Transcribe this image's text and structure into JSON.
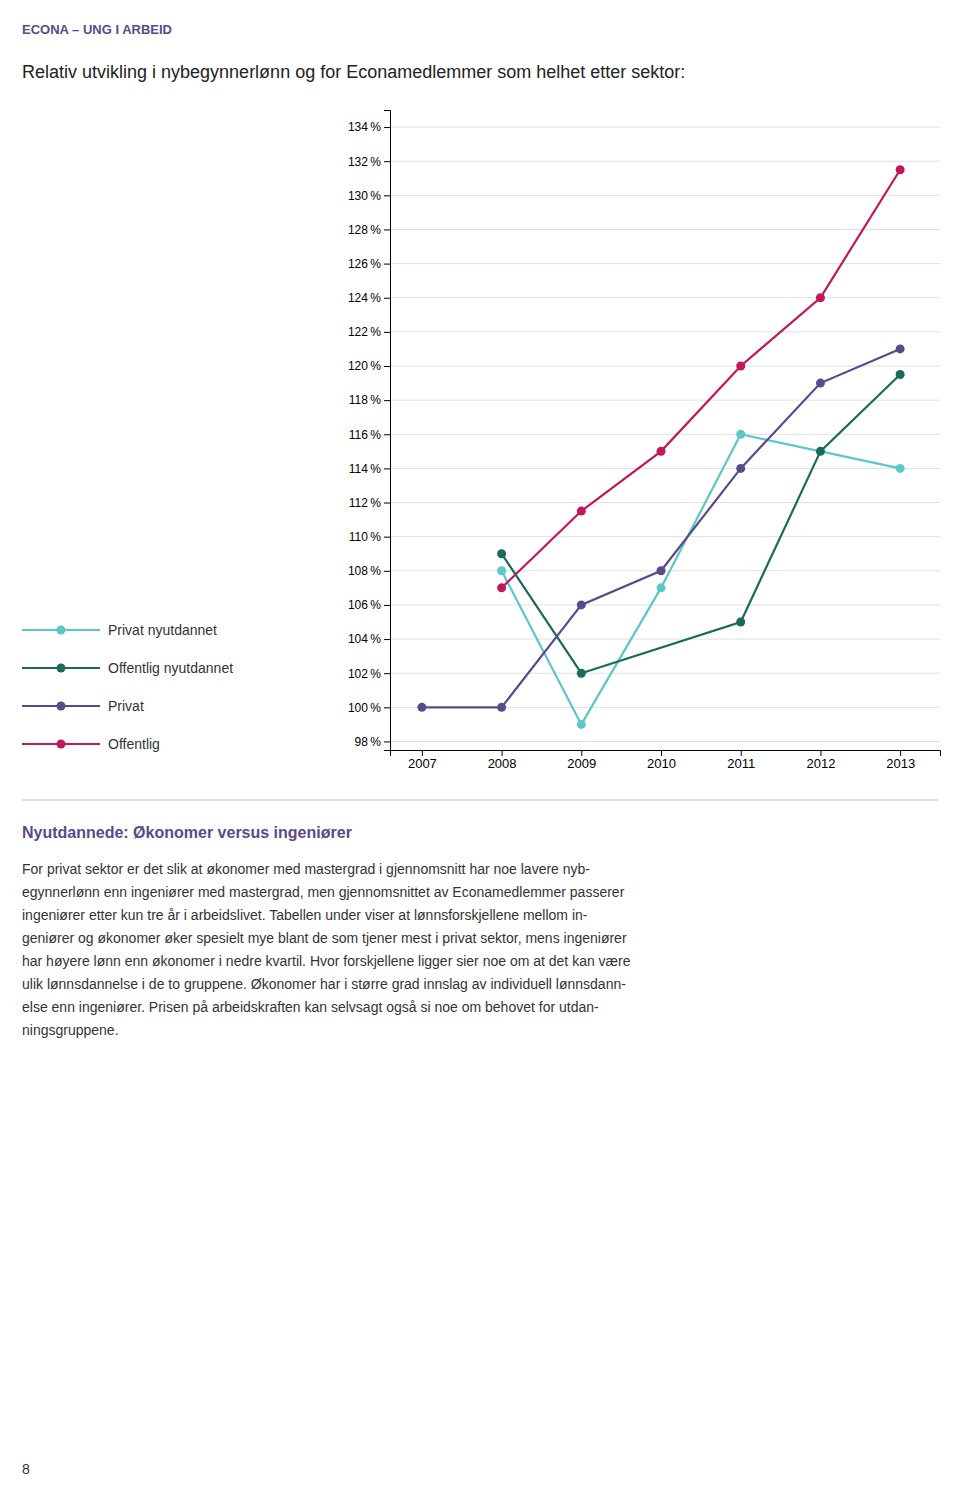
{
  "chart_data": {
    "type": "line",
    "title": "Relativ utvikling i nybegynnerlønn og for Econamedlemmer som helhet etter sektor:",
    "x": [
      2007,
      2008,
      2009,
      2010,
      2011,
      2012,
      2013
    ],
    "series": [
      {
        "name": "Privat nyutdannet",
        "color": "#5BC8C8",
        "values": [
          null,
          108,
          99,
          107,
          116,
          null,
          114
        ]
      },
      {
        "name": "Offentlig nyutdannet",
        "color": "#1A6B5A",
        "values": [
          null,
          109,
          102,
          null,
          105,
          115,
          119.5
        ]
      },
      {
        "name": "Privat",
        "color": "#5B4A8A",
        "values": [
          100,
          100,
          106,
          108,
          114,
          119,
          121
        ]
      },
      {
        "name": "Offentlig",
        "color": "#C2185B",
        "values": [
          null,
          107,
          111.5,
          115,
          120,
          124,
          131.5
        ]
      }
    ],
    "xlim": [
      2006.6,
      2013.5
    ],
    "xticks": [
      2007,
      2008,
      2009,
      2010,
      2011,
      2012,
      2013
    ],
    "ylim": [
      97.5,
      135
    ],
    "yticks": [
      {
        "value": 98,
        "label": "98 %"
      },
      {
        "value": 100,
        "label": "100 %"
      },
      {
        "value": 102,
        "label": "102 %"
      },
      {
        "value": 104,
        "label": "104 %"
      },
      {
        "value": 106,
        "label": "106 %"
      },
      {
        "value": 108,
        "label": "108 %"
      },
      {
        "value": 110,
        "label": "110 %"
      },
      {
        "value": 112,
        "label": "112 %"
      },
      {
        "value": 114,
        "label": "114 %"
      },
      {
        "value": 116,
        "label": "116 %"
      },
      {
        "value": 118,
        "label": "118 %"
      },
      {
        "value": 120,
        "label": "120 %"
      },
      {
        "value": 122,
        "label": "122 %"
      },
      {
        "value": 124,
        "label": "124 %"
      },
      {
        "value": 126,
        "label": "126 %"
      },
      {
        "value": 128,
        "label": "128 %"
      },
      {
        "value": 130,
        "label": "130 %"
      },
      {
        "value": 132,
        "label": "132 %"
      },
      {
        "value": 134,
        "label": "134 %"
      }
    ],
    "grid": true,
    "legend": "left",
    "marker": "circle"
  },
  "header": [
    "ECONA",
    " – UNG I ARBEID"
  ],
  "section_heading": "Nyutdannede: Økonomer versus ingeniører",
  "body_text": [
    "For privat sektor er det slik at økonomer med mastergrad i gjennomsnitt har noe lavere nyb-",
    "egynnerlønn enn ingeniører med mastergrad, men gjennomsnittet av Econamedlemmer passerer",
    "ingeniører etter kun tre år i arbeidslivet. Tabellen under viser at lønnsforskjellene mellom in-",
    "geniører og økonomer øker spesielt mye blant de som tjener mest i privat sektor, mens ingeniører",
    "har høyere lønn enn økonomer i nedre kvartil. Hvor forskjellene ligger sier noe om at det kan være",
    "ulik lønnsdannelse i de to gruppene. Økonomer har i større grad innslag av individuell lønnsdann-",
    "else enn ingeniører. Prisen på arbeidskraften kan selvsagt også si noe om behovet for utdan-",
    "ningsgruppene."
  ],
  "page_number": "8"
}
